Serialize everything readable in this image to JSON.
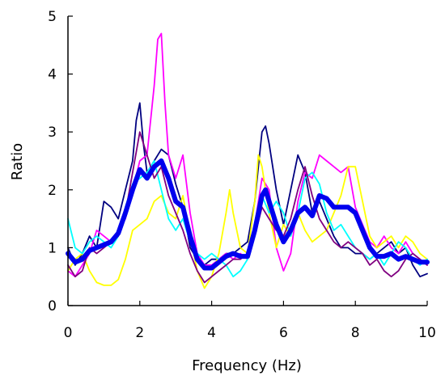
{
  "chart_data": {
    "type": "line",
    "title": "",
    "xlabel": "Frequency (Hz)",
    "ylabel": "Ratio",
    "xlim": [
      0,
      10
    ],
    "ylim": [
      0,
      5
    ],
    "xticks": [
      0,
      2,
      4,
      6,
      8,
      10
    ],
    "yticks": [
      0,
      1,
      2,
      3,
      4,
      5
    ],
    "grid": false,
    "legend": "none",
    "series": [
      {
        "color": "#000080",
        "points": [
          [
            0,
            1.0
          ],
          [
            0.2,
            0.7
          ],
          [
            0.4,
            0.9
          ],
          [
            0.6,
            1.2
          ],
          [
            0.8,
            1.0
          ],
          [
            1.0,
            1.8
          ],
          [
            1.2,
            1.7
          ],
          [
            1.4,
            1.5
          ],
          [
            1.6,
            2.0
          ],
          [
            1.8,
            2.5
          ],
          [
            1.9,
            3.2
          ],
          [
            2.0,
            3.5
          ],
          [
            2.1,
            2.8
          ],
          [
            2.2,
            2.3
          ],
          [
            2.4,
            2.5
          ],
          [
            2.6,
            2.7
          ],
          [
            2.8,
            2.6
          ],
          [
            3.0,
            2.1
          ],
          [
            3.2,
            1.7
          ],
          [
            3.4,
            1.0
          ],
          [
            3.6,
            0.8
          ],
          [
            3.8,
            0.7
          ],
          [
            4.0,
            0.8
          ],
          [
            4.2,
            0.8
          ],
          [
            4.4,
            0.9
          ],
          [
            4.6,
            0.9
          ],
          [
            4.8,
            1.0
          ],
          [
            5.0,
            1.1
          ],
          [
            5.2,
            1.8
          ],
          [
            5.4,
            3.0
          ],
          [
            5.5,
            3.1
          ],
          [
            5.6,
            2.8
          ],
          [
            5.8,
            2.0
          ],
          [
            6.0,
            1.4
          ],
          [
            6.2,
            2.0
          ],
          [
            6.4,
            2.6
          ],
          [
            6.6,
            2.3
          ],
          [
            6.8,
            1.6
          ],
          [
            7.0,
            1.8
          ],
          [
            7.2,
            1.5
          ],
          [
            7.4,
            1.2
          ],
          [
            7.6,
            1.0
          ],
          [
            7.8,
            1.0
          ],
          [
            8.0,
            0.9
          ],
          [
            8.2,
            0.9
          ],
          [
            8.4,
            0.8
          ],
          [
            8.6,
            0.9
          ],
          [
            8.8,
            1.0
          ],
          [
            9.0,
            1.1
          ],
          [
            9.2,
            0.9
          ],
          [
            9.4,
            1.0
          ],
          [
            9.6,
            0.7
          ],
          [
            9.8,
            0.5
          ],
          [
            10.0,
            0.55
          ]
        ]
      },
      {
        "color": "#FF00FF",
        "points": [
          [
            0,
            0.6
          ],
          [
            0.2,
            0.5
          ],
          [
            0.4,
            0.7
          ],
          [
            0.6,
            0.9
          ],
          [
            0.8,
            1.3
          ],
          [
            1.0,
            1.2
          ],
          [
            1.2,
            1.1
          ],
          [
            1.4,
            1.3
          ],
          [
            1.6,
            1.5
          ],
          [
            1.8,
            2.0
          ],
          [
            2.0,
            2.5
          ],
          [
            2.2,
            2.6
          ],
          [
            2.4,
            3.8
          ],
          [
            2.5,
            4.6
          ],
          [
            2.6,
            4.7
          ],
          [
            2.7,
            3.5
          ],
          [
            2.8,
            2.6
          ],
          [
            3.0,
            2.2
          ],
          [
            3.2,
            2.6
          ],
          [
            3.4,
            1.6
          ],
          [
            3.6,
            0.9
          ],
          [
            3.8,
            0.7
          ],
          [
            4.0,
            0.7
          ],
          [
            4.2,
            0.8
          ],
          [
            4.4,
            0.9
          ],
          [
            4.6,
            0.8
          ],
          [
            4.8,
            0.9
          ],
          [
            5.0,
            0.8
          ],
          [
            5.2,
            1.4
          ],
          [
            5.4,
            2.2
          ],
          [
            5.6,
            2.0
          ],
          [
            5.8,
            1.0
          ],
          [
            6.0,
            0.6
          ],
          [
            6.2,
            0.9
          ],
          [
            6.4,
            1.8
          ],
          [
            6.6,
            2.3
          ],
          [
            6.8,
            2.2
          ],
          [
            7.0,
            2.6
          ],
          [
            7.2,
            2.5
          ],
          [
            7.4,
            2.4
          ],
          [
            7.6,
            2.3
          ],
          [
            7.8,
            2.4
          ],
          [
            8.0,
            1.7
          ],
          [
            8.2,
            1.4
          ],
          [
            8.4,
            1.1
          ],
          [
            8.6,
            1.0
          ],
          [
            8.8,
            1.2
          ],
          [
            9.0,
            1.0
          ],
          [
            9.2,
            0.9
          ],
          [
            9.4,
            1.1
          ],
          [
            9.6,
            0.9
          ],
          [
            9.8,
            0.8
          ],
          [
            10.0,
            0.7
          ]
        ]
      },
      {
        "color": "#FFFF00",
        "points": [
          [
            0,
            0.6
          ],
          [
            0.2,
            0.8
          ],
          [
            0.4,
            0.9
          ],
          [
            0.6,
            0.6
          ],
          [
            0.8,
            0.4
          ],
          [
            1.0,
            0.35
          ],
          [
            1.2,
            0.35
          ],
          [
            1.4,
            0.45
          ],
          [
            1.6,
            0.8
          ],
          [
            1.8,
            1.3
          ],
          [
            2.0,
            1.4
          ],
          [
            2.2,
            1.5
          ],
          [
            2.4,
            1.8
          ],
          [
            2.6,
            1.9
          ],
          [
            2.8,
            1.6
          ],
          [
            3.0,
            1.5
          ],
          [
            3.2,
            1.9
          ],
          [
            3.4,
            1.2
          ],
          [
            3.6,
            0.6
          ],
          [
            3.8,
            0.3
          ],
          [
            4.0,
            0.5
          ],
          [
            4.2,
            0.9
          ],
          [
            4.4,
            1.6
          ],
          [
            4.5,
            2.0
          ],
          [
            4.6,
            1.6
          ],
          [
            4.8,
            1.0
          ],
          [
            5.0,
            0.9
          ],
          [
            5.2,
            1.8
          ],
          [
            5.3,
            2.6
          ],
          [
            5.4,
            2.4
          ],
          [
            5.6,
            1.6
          ],
          [
            5.8,
            1.0
          ],
          [
            6.0,
            1.4
          ],
          [
            6.2,
            1.2
          ],
          [
            6.4,
            1.6
          ],
          [
            6.6,
            1.3
          ],
          [
            6.8,
            1.1
          ],
          [
            7.0,
            1.2
          ],
          [
            7.2,
            1.3
          ],
          [
            7.4,
            1.6
          ],
          [
            7.6,
            1.9
          ],
          [
            7.8,
            2.4
          ],
          [
            8.0,
            2.4
          ],
          [
            8.2,
            1.8
          ],
          [
            8.4,
            1.2
          ],
          [
            8.6,
            1.0
          ],
          [
            8.8,
            1.1
          ],
          [
            9.0,
            1.2
          ],
          [
            9.2,
            1.0
          ],
          [
            9.4,
            1.2
          ],
          [
            9.6,
            1.1
          ],
          [
            9.8,
            0.9
          ],
          [
            10.0,
            0.8
          ]
        ]
      },
      {
        "color": "#00FFFF",
        "points": [
          [
            0,
            1.5
          ],
          [
            0.2,
            1.0
          ],
          [
            0.4,
            0.9
          ],
          [
            0.6,
            1.1
          ],
          [
            0.8,
            1.2
          ],
          [
            1.0,
            1.1
          ],
          [
            1.2,
            1.0
          ],
          [
            1.4,
            1.2
          ],
          [
            1.6,
            1.7
          ],
          [
            1.8,
            2.1
          ],
          [
            2.0,
            2.2
          ],
          [
            2.2,
            2.3
          ],
          [
            2.4,
            2.5
          ],
          [
            2.6,
            2.0
          ],
          [
            2.8,
            1.5
          ],
          [
            3.0,
            1.3
          ],
          [
            3.2,
            1.5
          ],
          [
            3.4,
            1.1
          ],
          [
            3.6,
            0.9
          ],
          [
            3.8,
            0.8
          ],
          [
            4.0,
            0.9
          ],
          [
            4.2,
            0.8
          ],
          [
            4.4,
            0.7
          ],
          [
            4.6,
            0.5
          ],
          [
            4.8,
            0.6
          ],
          [
            5.0,
            0.8
          ],
          [
            5.2,
            1.3
          ],
          [
            5.4,
            1.9
          ],
          [
            5.6,
            1.6
          ],
          [
            5.8,
            1.8
          ],
          [
            6.0,
            1.6
          ],
          [
            6.2,
            1.2
          ],
          [
            6.4,
            1.6
          ],
          [
            6.6,
            2.2
          ],
          [
            6.8,
            2.3
          ],
          [
            7.0,
            2.1
          ],
          [
            7.2,
            1.6
          ],
          [
            7.4,
            1.3
          ],
          [
            7.6,
            1.4
          ],
          [
            7.8,
            1.2
          ],
          [
            8.0,
            1.0
          ],
          [
            8.2,
            0.9
          ],
          [
            8.4,
            0.8
          ],
          [
            8.6,
            0.9
          ],
          [
            8.8,
            0.7
          ],
          [
            9.0,
            0.9
          ],
          [
            9.2,
            1.1
          ],
          [
            9.4,
            1.0
          ],
          [
            9.6,
            0.8
          ],
          [
            9.8,
            0.7
          ],
          [
            10.0,
            0.8
          ]
        ]
      },
      {
        "color": "#800080",
        "points": [
          [
            0,
            0.7
          ],
          [
            0.2,
            0.5
          ],
          [
            0.4,
            0.6
          ],
          [
            0.6,
            1.0
          ],
          [
            0.8,
            0.9
          ],
          [
            1.0,
            1.0
          ],
          [
            1.2,
            1.1
          ],
          [
            1.4,
            1.2
          ],
          [
            1.6,
            1.6
          ],
          [
            1.8,
            2.3
          ],
          [
            2.0,
            3.0
          ],
          [
            2.2,
            2.6
          ],
          [
            2.4,
            2.2
          ],
          [
            2.6,
            2.4
          ],
          [
            2.8,
            1.9
          ],
          [
            3.0,
            1.6
          ],
          [
            3.2,
            1.3
          ],
          [
            3.4,
            0.9
          ],
          [
            3.6,
            0.6
          ],
          [
            3.8,
            0.4
          ],
          [
            4.0,
            0.5
          ],
          [
            4.2,
            0.6
          ],
          [
            4.4,
            0.7
          ],
          [
            4.6,
            0.8
          ],
          [
            4.8,
            0.8
          ],
          [
            5.0,
            0.9
          ],
          [
            5.2,
            1.2
          ],
          [
            5.4,
            1.7
          ],
          [
            5.6,
            1.5
          ],
          [
            5.8,
            1.3
          ],
          [
            6.0,
            1.2
          ],
          [
            6.2,
            1.5
          ],
          [
            6.4,
            2.0
          ],
          [
            6.6,
            2.4
          ],
          [
            6.8,
            1.9
          ],
          [
            7.0,
            1.5
          ],
          [
            7.2,
            1.3
          ],
          [
            7.4,
            1.1
          ],
          [
            7.6,
            1.0
          ],
          [
            7.8,
            1.1
          ],
          [
            8.0,
            1.0
          ],
          [
            8.2,
            0.9
          ],
          [
            8.4,
            0.7
          ],
          [
            8.6,
            0.8
          ],
          [
            8.8,
            0.6
          ],
          [
            9.0,
            0.5
          ],
          [
            9.2,
            0.6
          ],
          [
            9.4,
            0.8
          ],
          [
            9.6,
            0.9
          ],
          [
            9.8,
            0.8
          ],
          [
            10.0,
            0.7
          ]
        ]
      },
      {
        "color": "#0000EE",
        "thick": true,
        "points": [
          [
            0,
            0.9
          ],
          [
            0.2,
            0.75
          ],
          [
            0.4,
            0.8
          ],
          [
            0.6,
            0.95
          ],
          [
            0.8,
            1.0
          ],
          [
            1.0,
            1.05
          ],
          [
            1.2,
            1.1
          ],
          [
            1.4,
            1.25
          ],
          [
            1.6,
            1.6
          ],
          [
            1.8,
            2.0
          ],
          [
            2.0,
            2.35
          ],
          [
            2.2,
            2.2
          ],
          [
            2.4,
            2.4
          ],
          [
            2.6,
            2.5
          ],
          [
            2.8,
            2.2
          ],
          [
            3.0,
            1.8
          ],
          [
            3.2,
            1.7
          ],
          [
            3.4,
            1.2
          ],
          [
            3.6,
            0.8
          ],
          [
            3.8,
            0.65
          ],
          [
            4.0,
            0.65
          ],
          [
            4.2,
            0.75
          ],
          [
            4.4,
            0.85
          ],
          [
            4.6,
            0.9
          ],
          [
            4.8,
            0.85
          ],
          [
            5.0,
            0.85
          ],
          [
            5.2,
            1.3
          ],
          [
            5.4,
            1.9
          ],
          [
            5.5,
            2.0
          ],
          [
            5.6,
            1.8
          ],
          [
            5.8,
            1.4
          ],
          [
            6.0,
            1.1
          ],
          [
            6.2,
            1.3
          ],
          [
            6.4,
            1.6
          ],
          [
            6.6,
            1.7
          ],
          [
            6.8,
            1.55
          ],
          [
            7.0,
            1.9
          ],
          [
            7.2,
            1.85
          ],
          [
            7.4,
            1.7
          ],
          [
            7.6,
            1.7
          ],
          [
            7.8,
            1.7
          ],
          [
            8.0,
            1.6
          ],
          [
            8.2,
            1.3
          ],
          [
            8.4,
            1.0
          ],
          [
            8.6,
            0.85
          ],
          [
            8.8,
            0.85
          ],
          [
            9.0,
            0.9
          ],
          [
            9.2,
            0.8
          ],
          [
            9.4,
            0.85
          ],
          [
            9.6,
            0.8
          ],
          [
            9.8,
            0.75
          ],
          [
            10.0,
            0.75
          ]
        ]
      }
    ]
  }
}
